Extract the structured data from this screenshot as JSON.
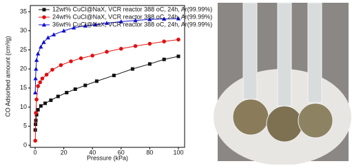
{
  "chart_data": {
    "type": "line",
    "xlabel": "Pressure (kPa)",
    "ylabel": "CO Adsorbed amount (cm³/g)",
    "xlim": [
      0,
      100
    ],
    "xticks": [
      0,
      20,
      40,
      60,
      80,
      100
    ],
    "ylim": [
      0,
      35
    ],
    "yticks": [
      0,
      5,
      10,
      15,
      20,
      25,
      30,
      35
    ],
    "legend": "upper left",
    "series": [
      {
        "name": "12wt% CuCl@NaX, VCR reactor 388 oC, 24h, Ar(99.99%)",
        "color": "#111111",
        "marker": "square",
        "x": [
          0.1,
          0.3,
          0.5,
          1,
          2,
          4,
          7,
          11,
          16,
          22,
          28,
          35,
          43,
          55,
          68,
          80,
          90,
          100
        ],
        "values": [
          4,
          5.5,
          6.5,
          8,
          9.3,
          10.3,
          11,
          11.8,
          12.8,
          13.8,
          14.7,
          15.7,
          16.8,
          18.3,
          20,
          21.3,
          22.5,
          23.3
        ]
      },
      {
        "name": "24wt% CuCl@NaX, VCR reactor 388 oC, 24h, Ar(99.99%)",
        "color": "#e01010",
        "marker": "circle",
        "x": [
          0.1,
          0.5,
          1,
          2,
          3.5,
          5,
          8,
          12,
          18,
          25,
          32,
          40,
          50,
          60,
          70,
          80,
          90,
          100
        ],
        "values": [
          1.2,
          8.5,
          12,
          15.5,
          16.5,
          17.5,
          18.5,
          19.8,
          21,
          22,
          22.8,
          23.5,
          24.5,
          25.3,
          26,
          26.6,
          27.2,
          27.7
        ]
      },
      {
        "name": "36wt% CuCl@NaX, VCR reactor 388 oC, 24h, Ar(99.99%)",
        "color": "#1010d0",
        "marker": "triangle",
        "x": [
          0.1,
          0.3,
          0.6,
          1,
          2,
          4,
          6,
          9,
          13,
          20,
          27,
          35,
          42,
          50,
          60,
          70,
          80,
          90,
          100
        ],
        "values": [
          13.8,
          17.5,
          20,
          22.3,
          24,
          25.8,
          27,
          28.2,
          29,
          30,
          30.8,
          31.3,
          31.6,
          32,
          32.4,
          32.7,
          33,
          33.1,
          33.2
        ]
      }
    ]
  }
}
